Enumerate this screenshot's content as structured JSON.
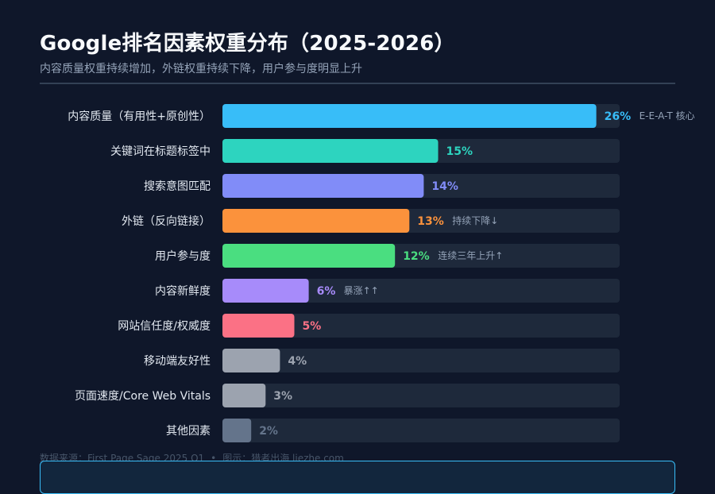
{
  "header": {
    "title": "Google排名因素权重分布（2025-2026）",
    "subtitle": "内容质量权重持续增加，外链权重持续下降，用户参与度明显上升"
  },
  "chart_data": {
    "type": "bar",
    "orientation": "horizontal",
    "title": "Google排名因素权重分布（2025-2026）",
    "subtitle": "内容质量权重持续增加，外链权重持续下降，用户参与度明显上升",
    "unit": "%",
    "xlim": [
      0,
      100
    ],
    "categories": [
      "内容质量（有用性+原创性）",
      "关键词在标题标签中",
      "搜索意图匹配",
      "外链（反向链接）",
      "用户参与度",
      "内容新鲜度",
      "网站信任度/权威度",
      "移动端友好性",
      "页面速度/Core Web Vitals",
      "其他因素"
    ],
    "values": [
      26,
      15,
      14,
      13,
      12,
      6,
      5,
      4,
      3,
      2
    ],
    "value_labels": [
      "26%",
      "15%",
      "14%",
      "13%",
      "12%",
      "6%",
      "5%",
      "4%",
      "3%",
      "2%"
    ],
    "colors": [
      "#38bdf8",
      "#2dd4bf",
      "#818cf8",
      "#fb923c",
      "#4ade80",
      "#a78bfa",
      "#fb7185",
      "#9ca3af",
      "#9ca3af",
      "#64748b"
    ],
    "annotations": [
      "E-E-A-T 核心",
      "",
      "",
      "持续下降↓",
      "连续三年上升↑",
      "暴涨↑↑",
      "",
      "",
      "",
      ""
    ]
  },
  "footer": {
    "source_label": "数据来源：First Page Sage 2025 Q1",
    "separator": "•",
    "credit": "图示：猎者出海 liezhe.com"
  },
  "colors": {
    "background": "#0f172a",
    "track": "#1e293b"
  }
}
